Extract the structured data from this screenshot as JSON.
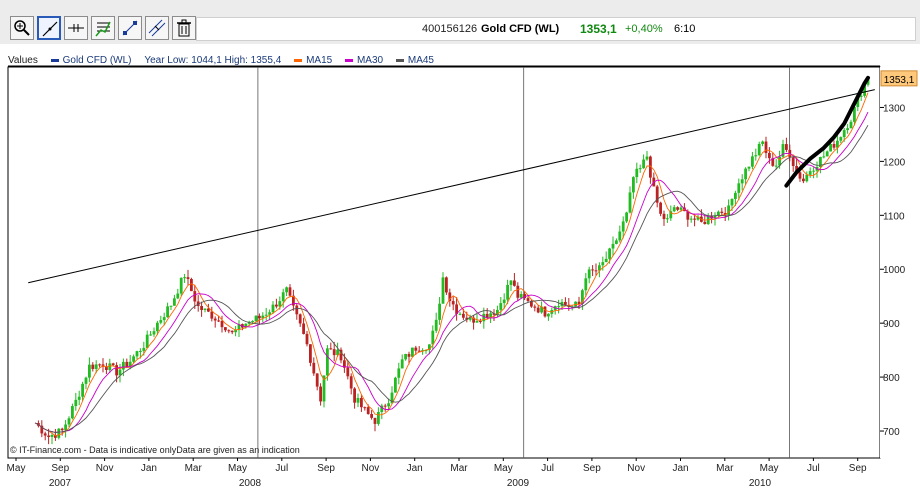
{
  "toolbar": {
    "tools": [
      {
        "name": "zoom-icon"
      },
      {
        "name": "draw-line-icon"
      },
      {
        "name": "horizontal-line-icon"
      },
      {
        "name": "fibonacci-icon"
      },
      {
        "name": "trend-points-icon"
      },
      {
        "name": "parallel-lines-icon"
      },
      {
        "name": "trash-icon"
      }
    ]
  },
  "instrument": {
    "id": "400156126",
    "name": "Gold CFD (WL)",
    "price": "1353,1",
    "change": "+0,40%",
    "time": "6:10"
  },
  "legend": {
    "values_label": "Values",
    "series_label": "Gold CFD (WL)",
    "range_label": "Year Low: 1044,1  High: 1355,4",
    "ma15": "MA15",
    "ma30": "MA30",
    "ma45": "MA45"
  },
  "copyright": "© IT-Finance.com - Data is indicative onlyData are given as an indication",
  "colors": {
    "up": "#22bb22",
    "down": "#bb2222",
    "ma15": "#ff6600",
    "ma30": "#cc00cc",
    "ma45": "#555555",
    "series": "#1a3a9a",
    "price_tag": "#ffc87a",
    "price_text": "#118811",
    "grid": "#555555"
  },
  "chart_data": {
    "type": "candlestick",
    "title": "Gold CFD (WL)",
    "ylim": [
      650,
      1375
    ],
    "yticks": [
      700,
      800,
      900,
      1000,
      1100,
      1200,
      1300
    ],
    "ytick_labels": [
      "700",
      "800",
      "900",
      "1000",
      "1100",
      "1200",
      "1300"
    ],
    "last_price_label": "1353,1",
    "months": [
      "May",
      "Sep",
      "Nov",
      "Jan",
      "Mar",
      "May",
      "Jul",
      "Sep",
      "Nov",
      "Jan",
      "Mar",
      "May",
      "Jul",
      "Sep",
      "Nov",
      "Jan",
      "Mar",
      "May",
      "Jul",
      "Sep"
    ],
    "years": [
      "2007",
      "2008",
      "2009",
      "2010"
    ],
    "vertical_gridlines_at": [
      "Jan 2008",
      "Jan 2009",
      "Jan 2010"
    ],
    "price_path": [
      [
        0,
        715
      ],
      [
        4,
        690
      ],
      [
        8,
        700
      ],
      [
        12,
        755
      ],
      [
        16,
        820
      ],
      [
        20,
        825
      ],
      [
        24,
        810
      ],
      [
        28,
        830
      ],
      [
        32,
        860
      ],
      [
        36,
        900
      ],
      [
        40,
        935
      ],
      [
        44,
        990
      ],
      [
        46,
        960
      ],
      [
        48,
        930
      ],
      [
        52,
        915
      ],
      [
        56,
        895
      ],
      [
        58,
        880
      ],
      [
        62,
        900
      ],
      [
        66,
        910
      ],
      [
        70,
        930
      ],
      [
        74,
        960
      ],
      [
        76,
        925
      ],
      [
        78,
        895
      ],
      [
        80,
        860
      ],
      [
        82,
        810
      ],
      [
        84,
        760
      ],
      [
        86,
        850
      ],
      [
        90,
        840
      ],
      [
        92,
        800
      ],
      [
        94,
        760
      ],
      [
        96,
        745
      ],
      [
        98,
        730
      ],
      [
        100,
        720
      ],
      [
        104,
        760
      ],
      [
        108,
        830
      ],
      [
        112,
        855
      ],
      [
        116,
        860
      ],
      [
        118,
        900
      ],
      [
        120,
        985
      ],
      [
        122,
        945
      ],
      [
        124,
        925
      ],
      [
        128,
        905
      ],
      [
        132,
        915
      ],
      [
        136,
        925
      ],
      [
        140,
        980
      ],
      [
        142,
        950
      ],
      [
        146,
        935
      ],
      [
        150,
        920
      ],
      [
        154,
        940
      ],
      [
        158,
        930
      ],
      [
        160,
        935
      ],
      [
        162,
        990
      ],
      [
        166,
        1000
      ],
      [
        170,
        1040
      ],
      [
        174,
        1100
      ],
      [
        176,
        1170
      ],
      [
        178,
        1185
      ],
      [
        180,
        1210
      ],
      [
        182,
        1145
      ],
      [
        184,
        1100
      ],
      [
        186,
        1090
      ],
      [
        188,
        1115
      ],
      [
        192,
        1100
      ],
      [
        196,
        1085
      ],
      [
        200,
        1105
      ],
      [
        204,
        1110
      ],
      [
        206,
        1150
      ],
      [
        210,
        1195
      ],
      [
        214,
        1235
      ],
      [
        216,
        1200
      ],
      [
        218,
        1195
      ],
      [
        220,
        1225
      ],
      [
        222,
        1215
      ],
      [
        224,
        1180
      ],
      [
        226,
        1165
      ],
      [
        228,
        1185
      ],
      [
        232,
        1210
      ],
      [
        236,
        1240
      ],
      [
        240,
        1280
      ],
      [
        243,
        1330
      ],
      [
        245,
        1353
      ]
    ],
    "highlight_curve": [
      [
        221,
        1155
      ],
      [
        224,
        1180
      ],
      [
        228,
        1205
      ],
      [
        232,
        1225
      ],
      [
        235,
        1245
      ],
      [
        238,
        1270
      ],
      [
        240,
        1295
      ],
      [
        242,
        1320
      ],
      [
        244,
        1345
      ],
      [
        245,
        1355
      ]
    ],
    "trendline": {
      "start": [
        -2,
        975
      ],
      "end": [
        247,
        1333
      ]
    }
  }
}
